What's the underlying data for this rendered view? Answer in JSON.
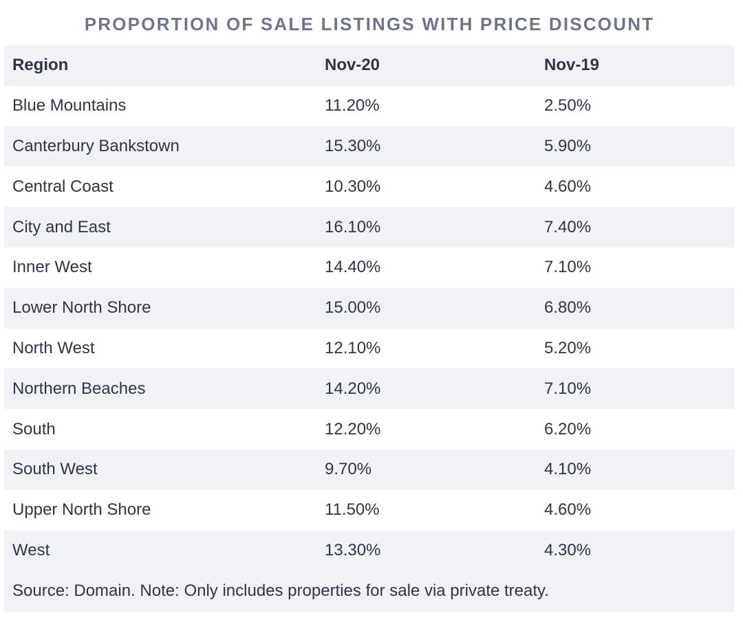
{
  "title": "PROPORTION OF SALE LISTINGS WITH PRICE DISCOUNT",
  "table": {
    "headers": [
      "Region",
      "Nov-20",
      "Nov-19"
    ],
    "rows": [
      [
        "Blue Mountains",
        "11.20%",
        "2.50%"
      ],
      [
        "Canterbury Bankstown",
        "15.30%",
        "5.90%"
      ],
      [
        "Central Coast",
        "10.30%",
        "4.60%"
      ],
      [
        "City and East",
        "16.10%",
        "7.40%"
      ],
      [
        "Inner West",
        "14.40%",
        "7.10%"
      ],
      [
        "Lower North Shore",
        "15.00%",
        "6.80%"
      ],
      [
        "North West",
        "12.10%",
        "5.20%"
      ],
      [
        "Northern Beaches",
        "14.20%",
        "7.10%"
      ],
      [
        "South",
        "12.20%",
        "6.20%"
      ],
      [
        "South West",
        "9.70%",
        "4.10%"
      ],
      [
        "Upper North Shore",
        "11.50%",
        "4.60%"
      ],
      [
        "West",
        "13.30%",
        "4.30%"
      ]
    ]
  },
  "source_note": "Source: Domain. Note: Only includes properties for sale via private treaty.",
  "colors": {
    "title": "#6f7586",
    "text": "#2f3447",
    "band": "#f1f2f6"
  }
}
